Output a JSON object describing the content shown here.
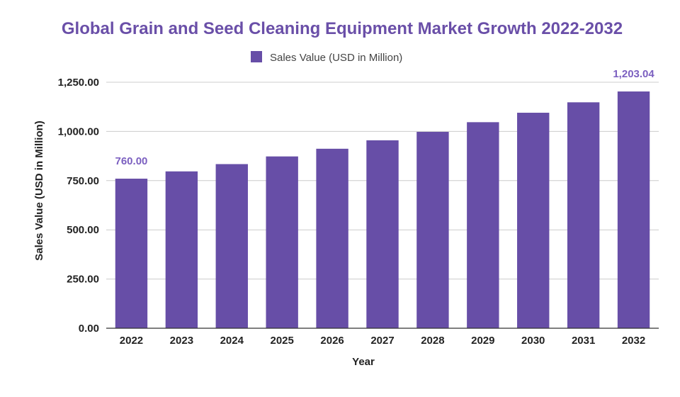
{
  "chart_data": {
    "type": "bar",
    "title": "Global Grain and Seed Cleaning Equipment Market Growth 2022-2032",
    "xlabel": "Year",
    "ylabel": "Sales Value (USD in Million)",
    "categories": [
      "2022",
      "2023",
      "2024",
      "2025",
      "2026",
      "2027",
      "2028",
      "2029",
      "2030",
      "2031",
      "2032"
    ],
    "series": [
      {
        "name": "Sales Value (USD in Million)",
        "values": [
          760.0,
          797.0,
          834.0,
          873.0,
          912.0,
          955.0,
          998.0,
          1047.0,
          1095.0,
          1148.0,
          1203.04
        ],
        "color": "#674ea7"
      }
    ],
    "ylim": [
      0,
      1250
    ],
    "yticks": [
      0,
      250,
      500,
      750,
      1000,
      1250
    ],
    "ytick_labels": [
      "0.00",
      "250.00",
      "500.00",
      "750.00",
      "1,000.00",
      "1,250.00"
    ],
    "data_labels": [
      {
        "category": "2022",
        "text": "760.00"
      },
      {
        "category": "2032",
        "text": "1,203.04"
      }
    ],
    "grid": true,
    "legend_position": "top-center"
  }
}
